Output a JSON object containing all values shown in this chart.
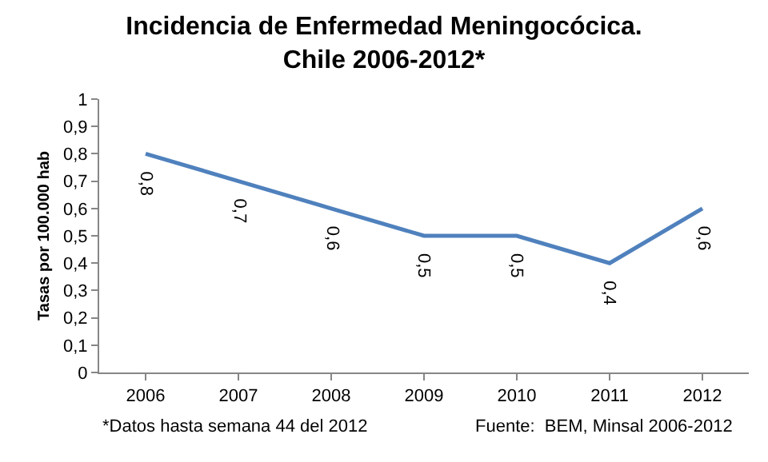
{
  "chart_data": {
    "type": "line",
    "title": "Incidencia de Enfermedad Meningocócica.\nChile 2006-2012*",
    "ylabel": "Tasas por 100.000 hab",
    "categories": [
      "2006",
      "2007",
      "2008",
      "2009",
      "2010",
      "2011",
      "2012"
    ],
    "series": [
      {
        "color": "#4f81bd",
        "values": [
          0.8,
          0.7,
          0.6,
          0.5,
          0.5,
          0.4,
          0.6
        ],
        "value_labels": [
          "0,8",
          "0,7",
          "0,6",
          "0,5",
          "0,5",
          "0,4",
          "0,6"
        ]
      }
    ],
    "ylim": [
      0,
      1
    ],
    "yticks": [
      {
        "value": 0,
        "label": "0"
      },
      {
        "value": 0.1,
        "label": "0,1"
      },
      {
        "value": 0.2,
        "label": "0,2"
      },
      {
        "value": 0.3,
        "label": "0,3"
      },
      {
        "value": 0.4,
        "label": "0,4"
      },
      {
        "value": 0.5,
        "label": "0,5"
      },
      {
        "value": 0.6,
        "label": "0,6"
      },
      {
        "value": 0.7,
        "label": "0,7"
      },
      {
        "value": 0.8,
        "label": "0,8"
      },
      {
        "value": 0.9,
        "label": "0,9"
      },
      {
        "value": 1,
        "label": "1"
      }
    ],
    "marker": "none",
    "line_style": "solid",
    "annotations": [
      "*Datos hasta semana 44 del 2012",
      "Fuente:  BEM, Minsal 2006-2012"
    ]
  }
}
